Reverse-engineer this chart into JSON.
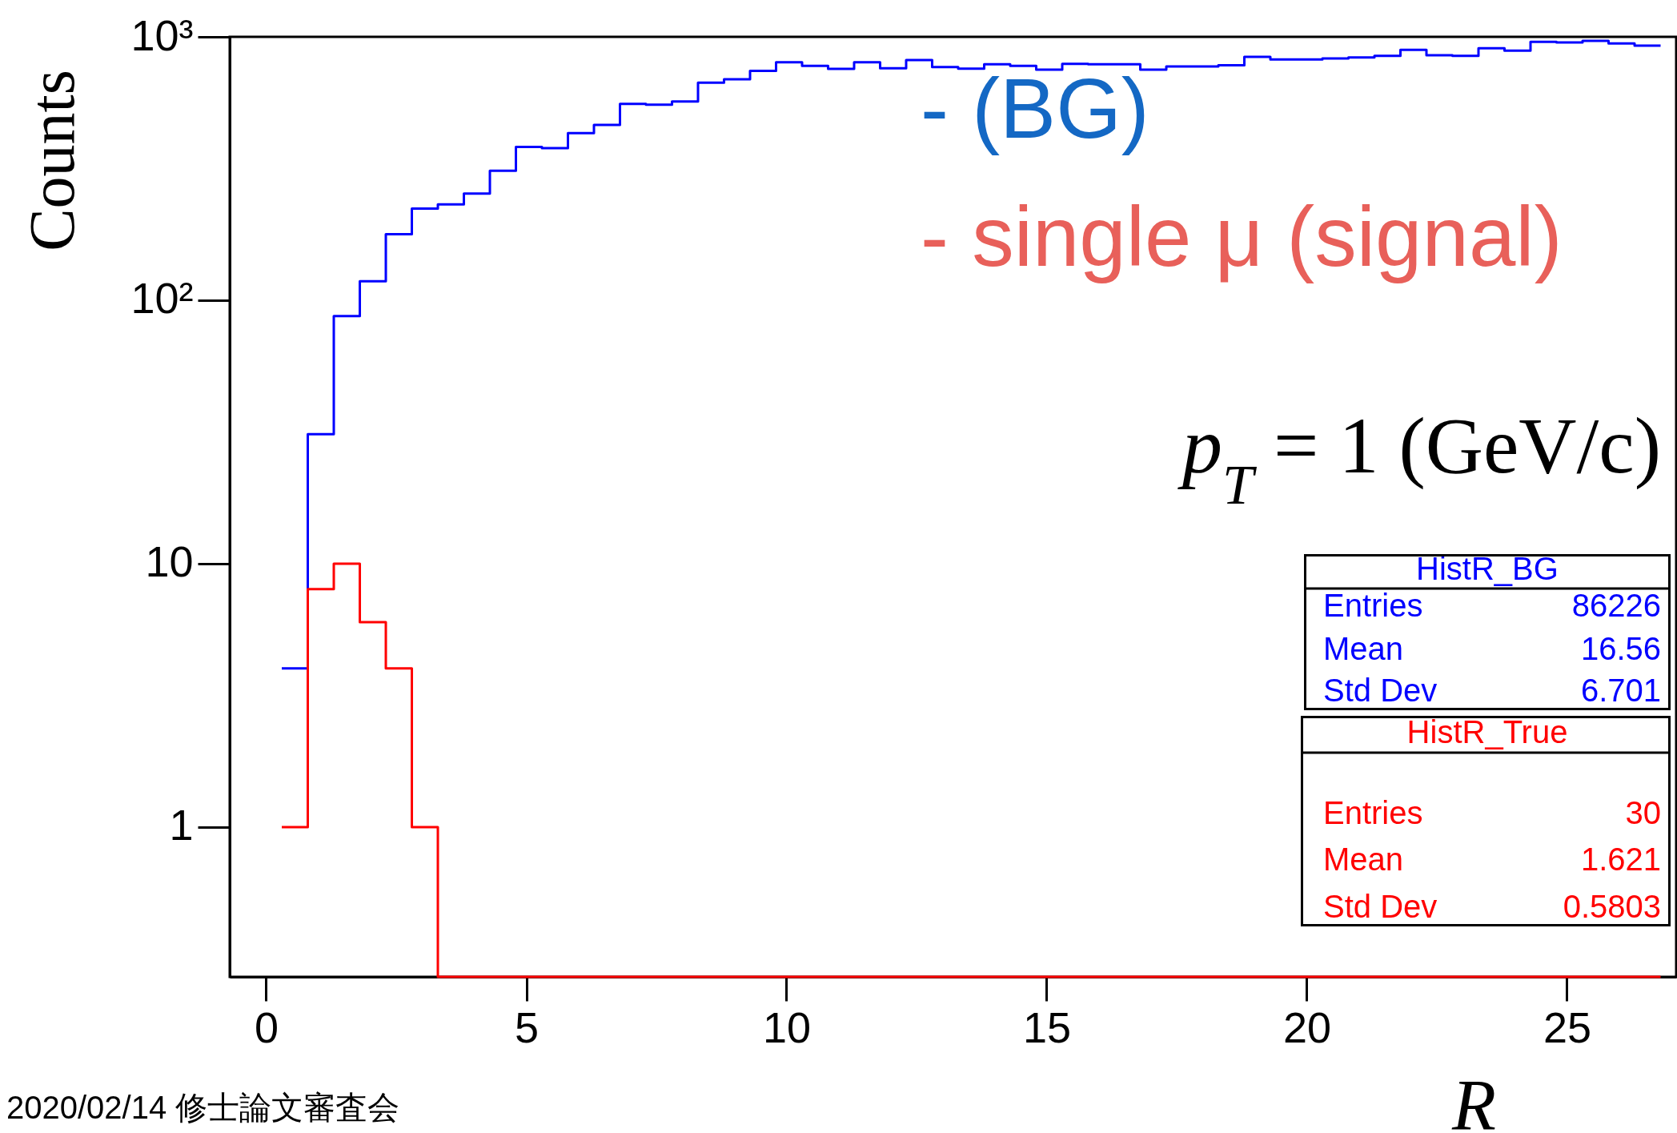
{
  "chart_data": {
    "type": "histogram",
    "xlabel": "R",
    "ylabel": "Counts",
    "bins": [
      0.3,
      0.8,
      1.3,
      1.8,
      2.3,
      2.8,
      3.3,
      3.8,
      4.3,
      4.8,
      5.3,
      5.8,
      6.3,
      6.8,
      7.3,
      7.8,
      8.3,
      8.8,
      9.3,
      9.8,
      10.3,
      10.8,
      11.3,
      11.8,
      12.3,
      12.8,
      13.3,
      13.8,
      14.3,
      14.8,
      15.3,
      15.8,
      16.3,
      16.8,
      17.3,
      17.8,
      18.3,
      18.8,
      19.3,
      19.8,
      20.3,
      20.8,
      21.3,
      21.8,
      22.3,
      22.8,
      23.3,
      23.8,
      24.3,
      24.8,
      25.3,
      25.8,
      26.3,
      26.8
    ],
    "series": [
      {
        "color": "#0000ff",
        "values": [
          4,
          31,
          87,
          118,
          178,
          223,
          231,
          254,
          310,
          382,
          378,
          431,
          463,
          556,
          553,
          568,
          670,
          690,
          743,
          801,
          776,
          756,
          801,
          760,
          816,
          768,
          757,
          787,
          776,
          750,
          790,
          787,
          787,
          750,
          772,
          772,
          780,
          839,
          820,
          820,
          828,
          835,
          847,
          892,
          851,
          847,
          905,
          887,
          957,
          952,
          966,
          944,
          926
        ]
      },
      {
        "color": "#ff0000",
        "values": [
          1,
          8,
          10,
          6,
          4,
          1,
          null,
          null,
          null,
          null,
          null,
          null,
          null,
          null,
          null,
          null,
          null,
          null,
          null,
          null,
          null,
          null,
          null,
          null,
          null,
          null,
          null,
          null,
          null,
          null,
          null,
          null,
          null,
          null,
          null,
          null,
          null,
          null,
          null,
          null,
          null,
          null,
          null,
          null,
          null,
          null,
          null,
          null,
          null,
          null,
          null,
          null,
          null
        ]
      }
    ],
    "xlim": [
      -0.7,
      27.1
    ],
    "xticks": [
      0,
      5,
      10,
      15,
      20,
      25
    ],
    "ylim": [
      0.27,
      1000
    ],
    "yticks": [
      1,
      10,
      {
        "value": 100,
        "label": "10²"
      },
      {
        "value": 1000,
        "label": "10³"
      }
    ],
    "log": true,
    "annotations": [
      "- (BG)",
      "- single μ (signal)",
      "p$_{T}$ = 1 (GeV/c)",
      "HistR_BG",
      "Entries",
      "86226",
      "Mean",
      "16.56",
      "Std Dev",
      "6.701",
      "HistR_True",
      "Entries",
      "30",
      "Mean",
      "1.621",
      "Std Dev",
      "0.5803",
      "2020/02/14 修士論文審査会"
    ]
  }
}
